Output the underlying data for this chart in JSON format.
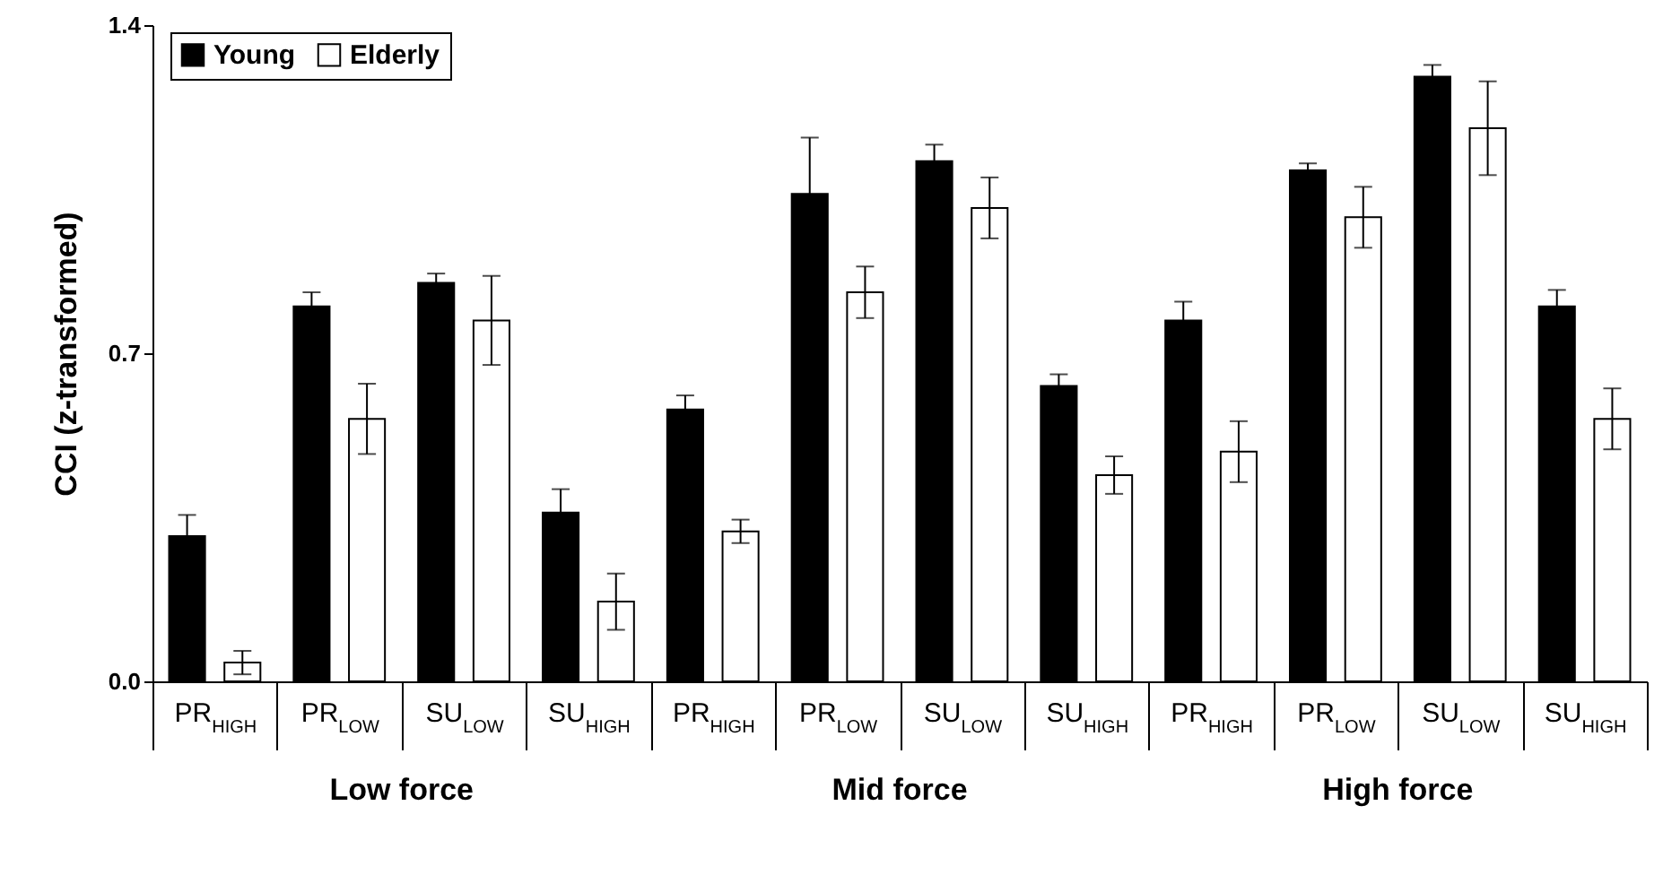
{
  "chart_data": {
    "type": "bar",
    "ylabel": "CCI (z-transformed)",
    "categories": [
      "PR$_{HIGH}$",
      "PR$_{LOW}$",
      "SU$_{LOW}$",
      "SU$_{HIGH}$",
      "PR$_{HIGH}$",
      "PR$_{LOW}$",
      "SU$_{LOW}$",
      "SU$_{HIGH}$",
      "PR$_{HIGH}$",
      "PR$_{LOW}$",
      "SU$_{LOW}$",
      "SU$_{HIGH}$"
    ],
    "series": [
      {
        "name": "Young",
        "color": "#000000",
        "values": [
          0.31,
          0.8,
          0.85,
          0.36,
          0.58,
          1.04,
          1.11,
          0.63,
          0.77,
          1.09,
          1.29,
          0.8
        ],
        "errors": [
          0.045,
          0.03,
          0.02,
          0.05,
          0.03,
          0.12,
          0.035,
          0.025,
          0.04,
          0.015,
          0.025,
          0.035
        ]
      },
      {
        "name": "Elderly",
        "color": "#ffffff",
        "values": [
          0.04,
          0.56,
          0.77,
          0.17,
          0.32,
          0.83,
          1.01,
          0.44,
          0.49,
          0.99,
          1.18,
          0.56
        ],
        "errors": [
          0.025,
          0.075,
          0.095,
          0.06,
          0.025,
          0.055,
          0.065,
          0.04,
          0.065,
          0.065,
          0.1,
          0.065
        ]
      }
    ],
    "ylim": [
      0,
      1.4
    ],
    "yticks": [
      {
        "value": 0,
        "label": "0.0"
      },
      {
        "value": 0.7,
        "label": "0.7"
      },
      {
        "value": 1.4,
        "label": "1.4"
      }
    ],
    "annotations": [
      "Low force",
      "Mid force",
      "High force"
    ],
    "legend": "top left",
    "grid": false
  }
}
